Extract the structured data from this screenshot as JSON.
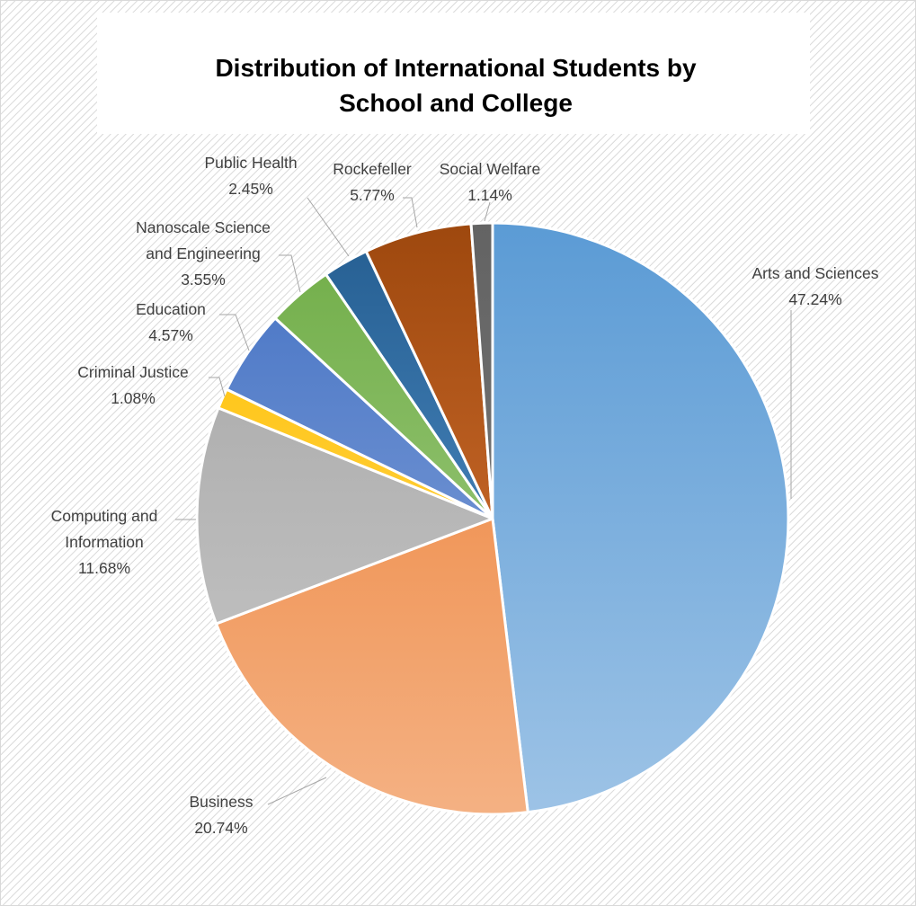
{
  "chart_data": {
    "type": "pie",
    "title_lines": [
      "Distribution of International Students by",
      "School and College"
    ],
    "slices": [
      {
        "name": "Arts and Sciences",
        "label_lines": [
          "Arts and Sciences"
        ],
        "value": 47.24,
        "value_label": "47.24%",
        "color_top": "#5b9bd5",
        "color_bottom": "#9dc3e6"
      },
      {
        "name": "Business",
        "label_lines": [
          "Business"
        ],
        "value": 20.74,
        "value_label": "20.74%",
        "color_top": "#ed7d31",
        "color_bottom": "#f4b183"
      },
      {
        "name": "Computing and Information",
        "label_lines": [
          "Computing and",
          "Information"
        ],
        "value": 11.68,
        "value_label": "11.68%",
        "color_top": "#a5a5a5",
        "color_bottom": "#c9c9c9"
      },
      {
        "name": "Criminal Justice",
        "label_lines": [
          "Criminal Justice"
        ],
        "value": 1.08,
        "value_label": "1.08%",
        "color_top": "#ffc000",
        "color_bottom": "#ffd966"
      },
      {
        "name": "Education",
        "label_lines": [
          "Education"
        ],
        "value": 4.57,
        "value_label": "4.57%",
        "color_top": "#4472c4",
        "color_bottom": "#8faadc"
      },
      {
        "name": "Nanoscale Science and Engineering",
        "label_lines": [
          "Nanoscale Science",
          "and Engineering"
        ],
        "value": 3.55,
        "value_label": "3.55%",
        "color_top": "#70ad47",
        "color_bottom": "#a9d18e"
      },
      {
        "name": "Public Health",
        "label_lines": [
          "Public Health"
        ],
        "value": 2.45,
        "value_label": "2.45%",
        "color_top": "#255e91",
        "color_bottom": "#5b9bd5"
      },
      {
        "name": "Rockefeller",
        "label_lines": [
          "Rockefeller"
        ],
        "value": 5.77,
        "value_label": "5.77%",
        "color_top": "#9e480e",
        "color_bottom": "#e07b3a"
      },
      {
        "name": "Social Welfare",
        "label_lines": [
          "Social Welfare"
        ],
        "value": 1.14,
        "value_label": "1.14%",
        "color_top": "#636363",
        "color_bottom": "#7f7f7f"
      }
    ],
    "start_angle_deg": 0,
    "direction": "clockwise",
    "legend": "none",
    "data_labels": "outside with leader lines"
  },
  "colors": {
    "background": "#ffffff",
    "hatch": "#d9d9d9",
    "slice_border": "#ffffff",
    "leader_line": "#a6a6a6",
    "label_text": "#404040",
    "title_text": "#000000"
  }
}
